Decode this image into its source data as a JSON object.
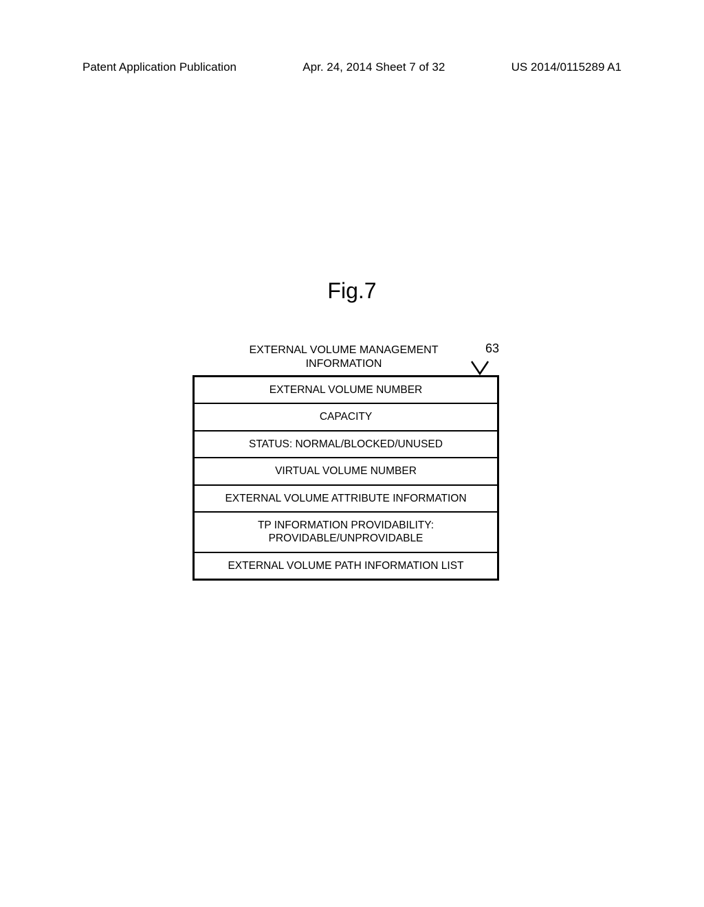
{
  "header": {
    "left": "Patent Application Publication",
    "center": "Apr. 24, 2014  Sheet 7 of 32",
    "right": "US 2014/0115289 A1"
  },
  "figure": {
    "label": "Fig.7",
    "title_line1": "EXTERNAL VOLUME MANAGEMENT",
    "title_line2": "INFORMATION",
    "reference_number": "63",
    "rows": [
      "EXTERNAL VOLUME NUMBER",
      "CAPACITY",
      "STATUS: NORMAL/BLOCKED/UNUSED",
      "VIRTUAL VOLUME NUMBER",
      "EXTERNAL VOLUME ATTRIBUTE INFORMATION",
      "TP INFORMATION PROVIDABILITY:\nPROVIDABLE/UNPROVIDABLE",
      "EXTERNAL VOLUME PATH INFORMATION LIST"
    ]
  },
  "colors": {
    "page_bg": "#ffffff",
    "text": "#000000",
    "border": "#000000"
  }
}
